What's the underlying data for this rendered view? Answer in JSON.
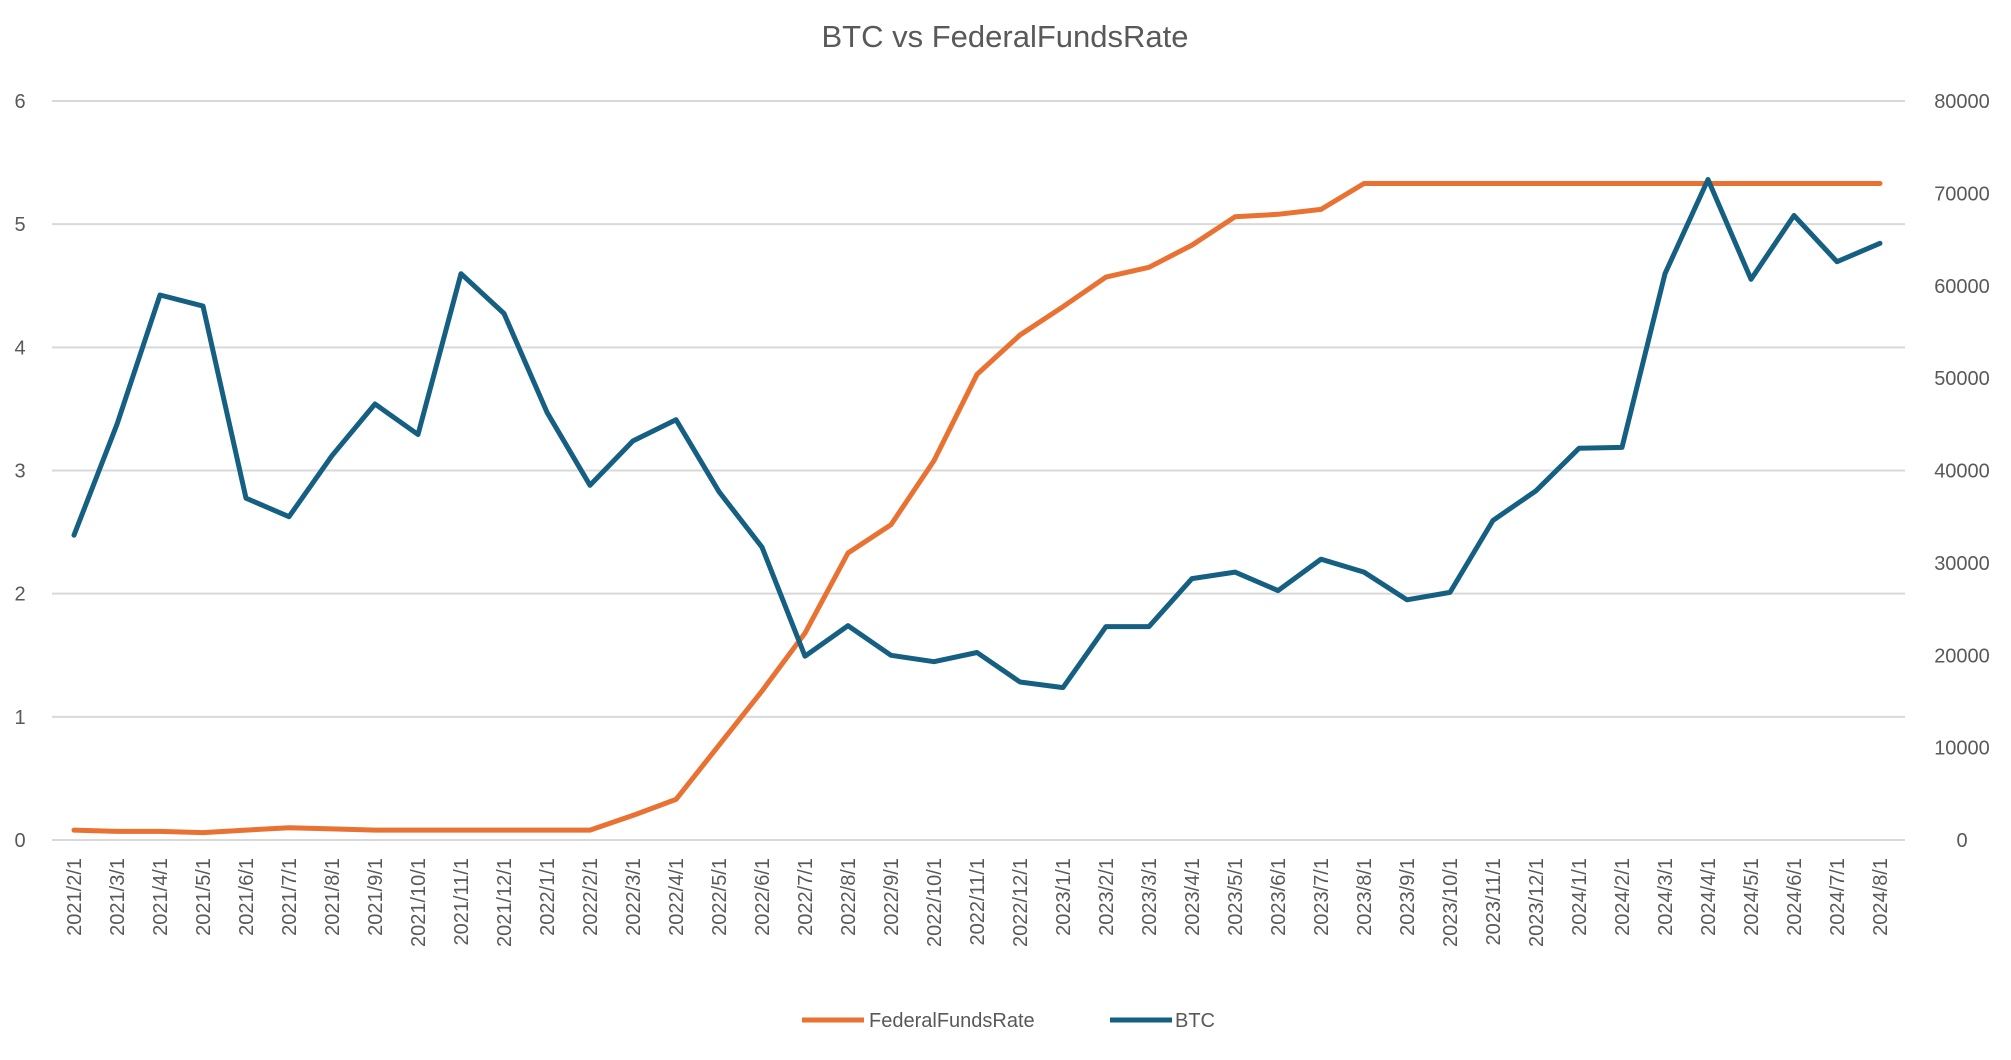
{
  "chart_data": {
    "type": "line",
    "title": "BTC vs FederalFundsRate",
    "xlabel": "",
    "ylabel": "",
    "y2label": "",
    "ylim": [
      0,
      6
    ],
    "y2lim": [
      0,
      80000
    ],
    "yticks": [
      "0",
      "1",
      "2",
      "3",
      "4",
      "5",
      "6"
    ],
    "y2ticks": [
      "0",
      "10000",
      "20000",
      "30000",
      "40000",
      "50000",
      "60000",
      "70000",
      "80000"
    ],
    "grid": true,
    "legend_position": "bottom",
    "categories": [
      "2021/2/1",
      "2021/3/1",
      "2021/4/1",
      "2021/5/1",
      "2021/6/1",
      "2021/7/1",
      "2021/8/1",
      "2021/9/1",
      "2021/10/1",
      "2021/11/1",
      "2021/12/1",
      "2022/1/1",
      "2022/2/1",
      "2022/3/1",
      "2022/4/1",
      "2022/5/1",
      "2022/6/1",
      "2022/7/1",
      "2022/8/1",
      "2022/9/1",
      "2022/10/1",
      "2022/11/1",
      "2022/12/1",
      "2023/1/1",
      "2023/2/1",
      "2023/3/1",
      "2023/4/1",
      "2023/5/1",
      "2023/6/1",
      "2023/7/1",
      "2023/8/1",
      "2023/9/1",
      "2023/10/1",
      "2023/11/1",
      "2023/12/1",
      "2024/1/1",
      "2024/2/1",
      "2024/3/1",
      "2024/4/1",
      "2024/5/1",
      "2024/6/1",
      "2024/7/1",
      "2024/8/1"
    ],
    "series": [
      {
        "name": "FederalFundsRate",
        "axis": "left",
        "color": "#E97132",
        "values": [
          0.08,
          0.07,
          0.07,
          0.06,
          0.08,
          0.1,
          0.09,
          0.08,
          0.08,
          0.08,
          0.08,
          0.08,
          0.08,
          0.2,
          0.33,
          0.77,
          1.21,
          1.68,
          2.33,
          2.56,
          3.08,
          3.78,
          4.1,
          4.33,
          4.57,
          4.65,
          4.83,
          5.06,
          5.08,
          5.12,
          5.33,
          5.33,
          5.33,
          5.33,
          5.33,
          5.33,
          5.33,
          5.33,
          5.33,
          5.33,
          5.33,
          5.33,
          5.33
        ]
      },
      {
        "name": "BTC",
        "axis": "right",
        "color": "#156082",
        "values": [
          33000,
          45000,
          59000,
          57800,
          37000,
          35000,
          41600,
          47200,
          43900,
          61300,
          57000,
          46300,
          38400,
          43200,
          45500,
          37700,
          31700,
          19900,
          23200,
          20000,
          19300,
          20300,
          17100,
          16500,
          23100,
          23100,
          28300,
          29000,
          27000,
          30400,
          29000,
          26000,
          26800,
          34600,
          37800,
          42400,
          42500,
          61300,
          71500,
          60700,
          67600,
          62600,
          64600
        ]
      }
    ]
  }
}
